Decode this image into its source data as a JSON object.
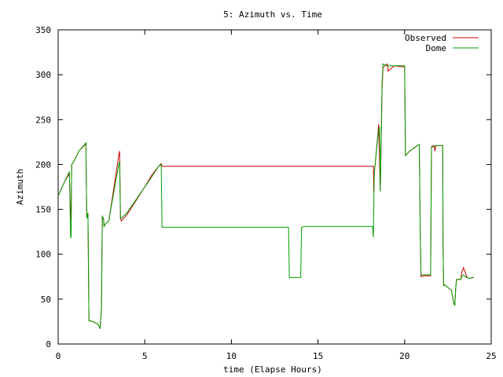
{
  "chart_data": {
    "type": "line",
    "title": "5: Azimuth vs. Time",
    "xlabel": "time (Elapse Hours)",
    "ylabel": "Azimuth",
    "xlim": [
      0,
      25
    ],
    "ylim": [
      0,
      350
    ],
    "x_ticks": [
      "0",
      "5",
      "10",
      "15",
      "20",
      "25"
    ],
    "y_ticks": [
      "0",
      "50",
      "100",
      "150",
      "200",
      "250",
      "300",
      "350"
    ],
    "grid": false,
    "legend_position": "top-right",
    "series": [
      {
        "name": "Observed",
        "color": "#cc0000",
        "points": [
          [
            0,
            165
          ],
          [
            0.35,
            180
          ],
          [
            0.65,
            190
          ],
          [
            0.72,
            138
          ],
          [
            0.75,
            139
          ],
          [
            0.78,
            200
          ],
          [
            0.9,
            203
          ],
          [
            1.2,
            215
          ],
          [
            1.6,
            223
          ],
          [
            1.65,
            140
          ],
          [
            1.72,
            146
          ],
          [
            1.78,
            26
          ],
          [
            2.0,
            25
          ],
          [
            2.3,
            22
          ],
          [
            2.42,
            17
          ],
          [
            2.5,
            40
          ],
          [
            2.55,
            142
          ],
          [
            2.62,
            140
          ],
          [
            2.65,
            131
          ],
          [
            2.7,
            133
          ],
          [
            2.95,
            138
          ],
          [
            2.97,
            143
          ],
          [
            3.5,
            210
          ],
          [
            3.55,
            215
          ],
          [
            3.6,
            140
          ],
          [
            3.65,
            137
          ],
          [
            4.0,
            145
          ],
          [
            5.0,
            175
          ],
          [
            5.4,
            188
          ],
          [
            5.8,
            198
          ],
          [
            5.95,
            201
          ],
          [
            6.0,
            198
          ],
          [
            10,
            198
          ],
          [
            18.2,
            198
          ],
          [
            18.22,
            170
          ],
          [
            18.25,
            190
          ],
          [
            18.3,
            200
          ],
          [
            18.45,
            230
          ],
          [
            18.5,
            245
          ],
          [
            18.6,
            170
          ],
          [
            18.7,
            282
          ],
          [
            18.75,
            308
          ],
          [
            19.0,
            312
          ],
          [
            19.05,
            304
          ],
          [
            19.4,
            310
          ],
          [
            19.8,
            309
          ],
          [
            20.0,
            309
          ],
          [
            20.05,
            210
          ],
          [
            20.3,
            215
          ],
          [
            20.8,
            222
          ],
          [
            20.85,
            222
          ],
          [
            20.9,
            130
          ],
          [
            20.95,
            75
          ],
          [
            21.1,
            76
          ],
          [
            21.5,
            76
          ],
          [
            21.55,
            220
          ],
          [
            21.7,
            221
          ],
          [
            21.75,
            215
          ],
          [
            21.8,
            221
          ],
          [
            22.2,
            221
          ],
          [
            22.22,
            110
          ],
          [
            22.25,
            65
          ],
          [
            22.3,
            66
          ],
          [
            22.5,
            63
          ],
          [
            22.7,
            60
          ],
          [
            22.85,
            45
          ],
          [
            22.9,
            43
          ],
          [
            22.95,
            62
          ],
          [
            23.0,
            72
          ],
          [
            23.25,
            72
          ],
          [
            23.3,
            80
          ],
          [
            23.4,
            85
          ],
          [
            23.5,
            80
          ],
          [
            23.6,
            74
          ],
          [
            23.8,
            73
          ],
          [
            23.9,
            74
          ],
          [
            24.0,
            74
          ]
        ]
      },
      {
        "name": "Dome",
        "color": "#00a000",
        "points": [
          [
            0,
            165
          ],
          [
            0.35,
            180
          ],
          [
            0.65,
            192
          ],
          [
            0.72,
            118
          ],
          [
            0.75,
            120
          ],
          [
            0.78,
            200
          ],
          [
            0.9,
            203
          ],
          [
            1.2,
            215
          ],
          [
            1.6,
            224
          ],
          [
            1.65,
            140
          ],
          [
            1.72,
            146
          ],
          [
            1.78,
            26
          ],
          [
            2.0,
            25
          ],
          [
            2.3,
            22
          ],
          [
            2.42,
            17
          ],
          [
            2.5,
            40
          ],
          [
            2.55,
            142
          ],
          [
            2.62,
            140
          ],
          [
            2.65,
            131
          ],
          [
            2.7,
            133
          ],
          [
            2.95,
            138
          ],
          [
            2.97,
            143
          ],
          [
            3.5,
            200
          ],
          [
            3.55,
            203
          ],
          [
            3.6,
            140
          ],
          [
            3.65,
            140
          ],
          [
            4.0,
            147
          ],
          [
            5.0,
            175
          ],
          [
            5.4,
            186
          ],
          [
            5.8,
            198
          ],
          [
            5.95,
            200
          ],
          [
            6.0,
            130
          ],
          [
            9.0,
            130
          ],
          [
            13.0,
            130
          ],
          [
            13.3,
            130
          ],
          [
            13.35,
            74
          ],
          [
            14.0,
            74
          ],
          [
            14.05,
            130
          ],
          [
            14.2,
            131
          ],
          [
            18.0,
            131
          ],
          [
            18.15,
            131
          ],
          [
            18.2,
            119
          ],
          [
            18.25,
            190
          ],
          [
            18.3,
            200
          ],
          [
            18.45,
            232
          ],
          [
            18.55,
            242
          ],
          [
            18.6,
            170
          ],
          [
            18.7,
            290
          ],
          [
            18.75,
            312
          ],
          [
            19.0,
            310
          ],
          [
            19.4,
            310
          ],
          [
            19.8,
            310
          ],
          [
            20.0,
            310
          ],
          [
            20.05,
            210
          ],
          [
            20.3,
            215
          ],
          [
            20.8,
            222
          ],
          [
            20.85,
            222
          ],
          [
            20.9,
            130
          ],
          [
            20.95,
            77
          ],
          [
            21.1,
            77
          ],
          [
            21.5,
            77
          ],
          [
            21.55,
            219
          ],
          [
            21.7,
            220
          ],
          [
            21.75,
            221
          ],
          [
            22.2,
            221
          ],
          [
            22.22,
            110
          ],
          [
            22.25,
            65
          ],
          [
            22.3,
            66
          ],
          [
            22.5,
            63
          ],
          [
            22.7,
            60
          ],
          [
            22.85,
            45
          ],
          [
            22.9,
            43
          ],
          [
            22.95,
            62
          ],
          [
            23.0,
            72
          ],
          [
            23.25,
            72
          ],
          [
            23.3,
            75
          ],
          [
            23.4,
            77
          ],
          [
            23.5,
            75
          ],
          [
            23.6,
            74
          ],
          [
            23.8,
            73
          ],
          [
            23.9,
            74
          ],
          [
            24.0,
            74
          ]
        ]
      }
    ]
  }
}
